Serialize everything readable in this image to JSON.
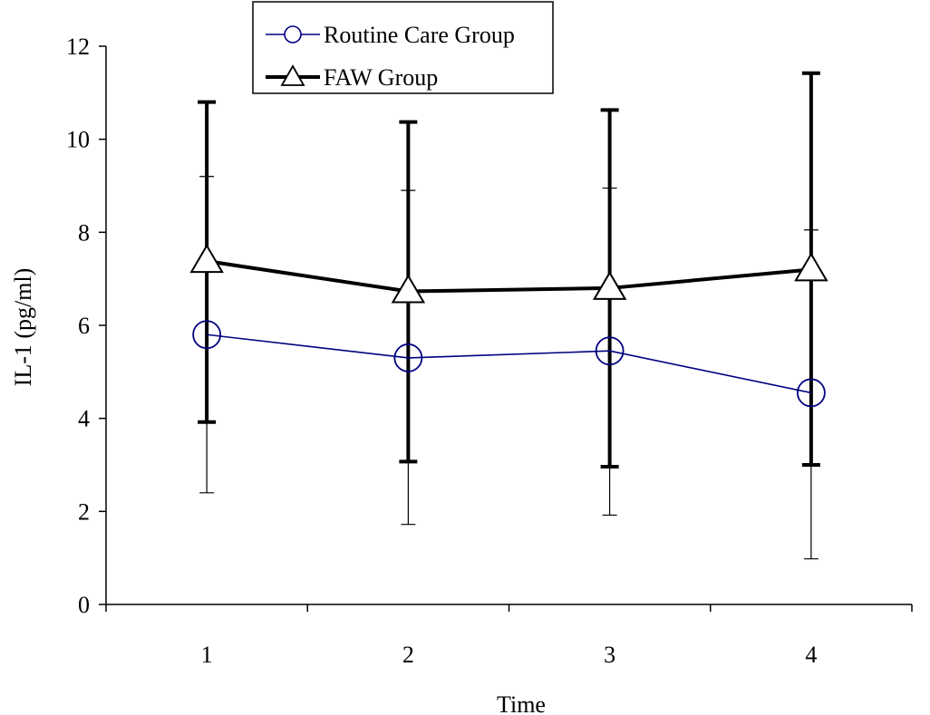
{
  "chart_data": {
    "type": "line",
    "title": "",
    "xlabel": "Time",
    "ylabel": "IL-1 (pg/ml)",
    "categories": [
      "1",
      "2",
      "3",
      "4"
    ],
    "x": [
      1,
      2,
      3,
      4
    ],
    "ylim": [
      0,
      12
    ],
    "yticks": [
      0,
      2,
      4,
      6,
      8,
      10,
      12
    ],
    "grid": false,
    "legend_position": "top-left",
    "series": [
      {
        "name": "Routine Care Group",
        "values": [
          5.8,
          5.3,
          5.45,
          4.55
        ],
        "error_upper": [
          9.2,
          8.9,
          8.95,
          8.05
        ],
        "error_lower": [
          2.4,
          1.72,
          1.92,
          0.98
        ],
        "marker": "circle",
        "color": "#000080"
      },
      {
        "name": "FAW Group",
        "values": [
          7.38,
          6.73,
          6.8,
          7.2
        ],
        "error_upper": [
          10.8,
          10.37,
          10.63,
          11.42
        ],
        "error_lower": [
          3.92,
          3.07,
          2.96,
          3.0
        ],
        "marker": "triangle",
        "color": "#000000"
      }
    ]
  }
}
